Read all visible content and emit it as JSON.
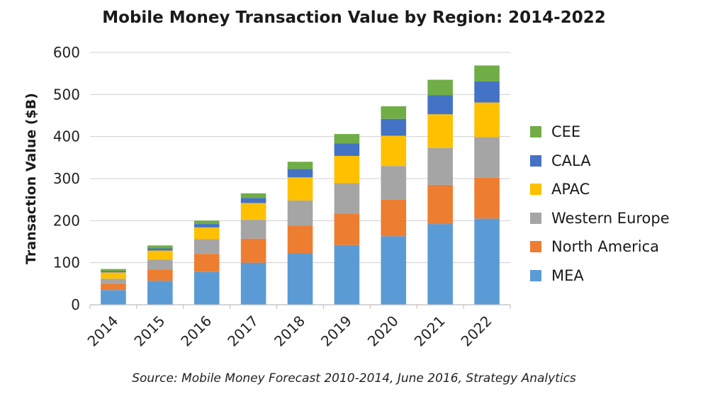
{
  "chart_data": {
    "type": "bar",
    "stacked": true,
    "title": "Mobile Money Transaction Value by Region: 2014-2022",
    "xlabel": "",
    "ylabel": "Transaction Value ($B)",
    "ylim": [
      0,
      600
    ],
    "yticks": [
      0,
      100,
      200,
      300,
      400,
      500,
      600
    ],
    "grid": true,
    "legend_position": "right",
    "categories": [
      "2014",
      "2015",
      "2016",
      "2017",
      "2018",
      "2019",
      "2020",
      "2021",
      "2022"
    ],
    "series": [
      {
        "name": "MEA",
        "color": "#5B9BD5",
        "values": [
          35,
          57,
          78,
          100,
          123,
          142,
          163,
          192,
          205
        ]
      },
      {
        "name": "North America",
        "color": "#ED7D31",
        "values": [
          15,
          27,
          43,
          57,
          65,
          75,
          87,
          93,
          97
        ]
      },
      {
        "name": "Western Europe",
        "color": "#A5A5A5",
        "values": [
          12,
          23,
          35,
          45,
          60,
          72,
          80,
          88,
          97
        ]
      },
      {
        "name": "APAC",
        "color": "#FFC000",
        "values": [
          15,
          22,
          28,
          40,
          55,
          65,
          72,
          80,
          82
        ]
      },
      {
        "name": "CALA",
        "color": "#4472C4",
        "values": [
          3,
          5,
          8,
          12,
          20,
          30,
          40,
          45,
          50
        ]
      },
      {
        "name": "CEE",
        "color": "#70AD47",
        "values": [
          5,
          7,
          8,
          11,
          17,
          22,
          30,
          37,
          38
        ]
      }
    ],
    "source": "Source: Mobile Money Forecast 2010-2014, June 2016, Strategy Analytics"
  }
}
